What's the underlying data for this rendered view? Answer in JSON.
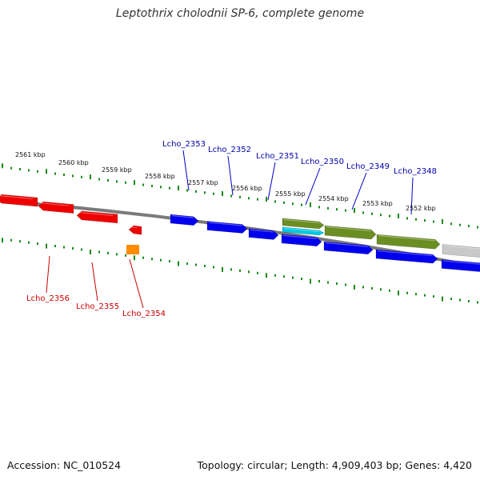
{
  "title": "Leptothrix cholodnii SP-6, complete genome",
  "footer": {
    "accession": "Accession: NC_010524",
    "summary": "Topology: circular; Length: 4,909,403 bp; Genes: 4,420"
  },
  "colors": {
    "forward_gene": "#0000ee",
    "reverse_gene": "#ee0000",
    "orange_gene": "#ff8c00",
    "olive_gene": "#6b8e23",
    "cyan_gene": "#00c8e0",
    "grey_gene": "#c8c8c8",
    "ticks": "#1a8a1a",
    "backbone": "#808080",
    "forward_label": "#0000aa",
    "reverse_label": "#cc0000"
  },
  "kbp_labels": [
    "2561 kbp",
    "2560 kbp",
    "2559 kbp",
    "2558 kbp",
    "2557 kbp",
    "2556 kbp",
    "2555 kbp",
    "2554 kbp",
    "2553 kbp",
    "2552 kbp"
  ],
  "forward_labels": [
    "Lcho_2353",
    "Lcho_2352",
    "Lcho_2351",
    "Lcho_2350",
    "Lcho_2349",
    "Lcho_2348"
  ],
  "reverse_labels": [
    "Lcho_2356",
    "Lcho_2355",
    "Lcho_2354"
  ]
}
